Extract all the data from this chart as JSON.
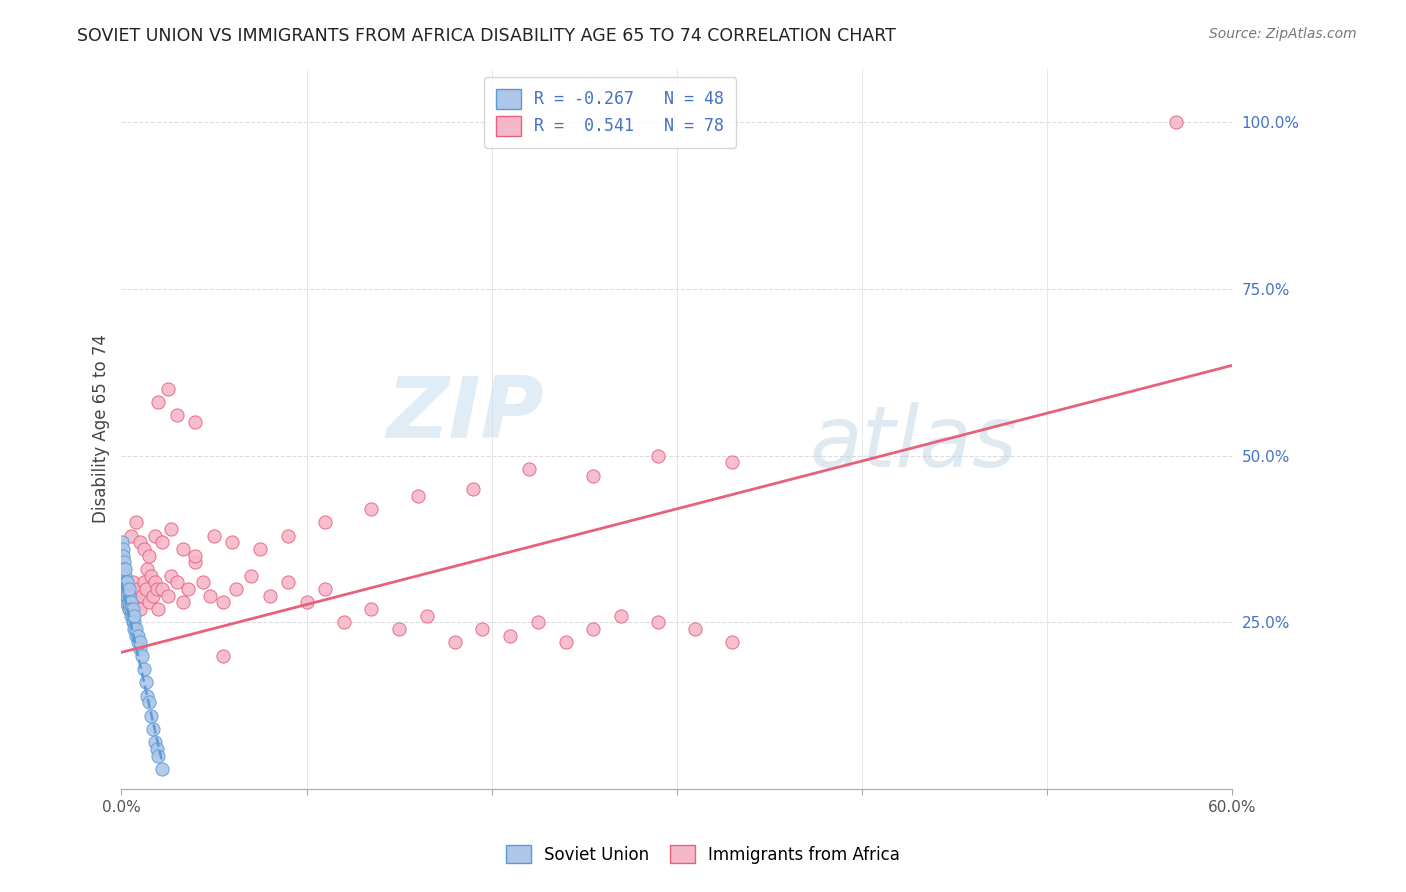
{
  "title": "SOVIET UNION VS IMMIGRANTS FROM AFRICA DISABILITY AGE 65 TO 74 CORRELATION CHART",
  "source": "Source: ZipAtlas.com",
  "ylabel": "Disability Age 65 to 74",
  "xlim": [
    0.0,
    0.6
  ],
  "ylim": [
    0.0,
    1.08
  ],
  "xticks": [
    0.0,
    0.1,
    0.2,
    0.3,
    0.4,
    0.5,
    0.6
  ],
  "ytick_right_vals": [
    0.25,
    0.5,
    0.75,
    1.0
  ],
  "ytick_right_labels": [
    "25.0%",
    "50.0%",
    "75.0%",
    "100.0%"
  ],
  "legend_r1": "R = -0.267   N = 48",
  "legend_r2": "R =  0.541   N = 78",
  "soviet_color": "#aec6e8",
  "africa_color": "#f5b8ca",
  "soviet_edge_color": "#5b9bd5",
  "africa_edge_color": "#e8607a",
  "soviet_line_color": "#5b9bd5",
  "africa_line_color": "#e8607a",
  "watermark_zip": "ZIP",
  "watermark_atlas": "atlas",
  "soviet_x": [
    0.0005,
    0.001,
    0.001,
    0.0015,
    0.0015,
    0.002,
    0.002,
    0.002,
    0.002,
    0.0025,
    0.0025,
    0.003,
    0.003,
    0.003,
    0.003,
    0.003,
    0.004,
    0.004,
    0.004,
    0.004,
    0.004,
    0.005,
    0.005,
    0.005,
    0.005,
    0.006,
    0.006,
    0.006,
    0.007,
    0.007,
    0.007,
    0.008,
    0.008,
    0.009,
    0.009,
    0.01,
    0.01,
    0.011,
    0.012,
    0.013,
    0.014,
    0.015,
    0.016,
    0.017,
    0.018,
    0.019,
    0.02,
    0.022
  ],
  "soviet_y": [
    0.37,
    0.36,
    0.35,
    0.34,
    0.33,
    0.32,
    0.33,
    0.31,
    0.3,
    0.31,
    0.3,
    0.29,
    0.3,
    0.31,
    0.28,
    0.29,
    0.28,
    0.29,
    0.3,
    0.27,
    0.28,
    0.27,
    0.28,
    0.26,
    0.27,
    0.26,
    0.27,
    0.25,
    0.25,
    0.26,
    0.24,
    0.23,
    0.24,
    0.22,
    0.23,
    0.21,
    0.22,
    0.2,
    0.18,
    0.16,
    0.14,
    0.13,
    0.11,
    0.09,
    0.07,
    0.06,
    0.05,
    0.03
  ],
  "africa_x": [
    0.001,
    0.002,
    0.003,
    0.004,
    0.005,
    0.006,
    0.007,
    0.008,
    0.009,
    0.01,
    0.011,
    0.012,
    0.013,
    0.014,
    0.015,
    0.016,
    0.017,
    0.018,
    0.019,
    0.02,
    0.022,
    0.025,
    0.027,
    0.03,
    0.033,
    0.036,
    0.04,
    0.044,
    0.048,
    0.055,
    0.062,
    0.07,
    0.08,
    0.09,
    0.1,
    0.11,
    0.12,
    0.135,
    0.15,
    0.165,
    0.18,
    0.195,
    0.21,
    0.225,
    0.24,
    0.255,
    0.27,
    0.29,
    0.31,
    0.33,
    0.005,
    0.008,
    0.01,
    0.012,
    0.015,
    0.018,
    0.022,
    0.027,
    0.033,
    0.04,
    0.05,
    0.06,
    0.075,
    0.09,
    0.11,
    0.135,
    0.16,
    0.19,
    0.22,
    0.255,
    0.29,
    0.33,
    0.02,
    0.025,
    0.03,
    0.04,
    0.055,
    0.57
  ],
  "africa_y": [
    0.3,
    0.28,
    0.29,
    0.27,
    0.3,
    0.31,
    0.29,
    0.28,
    0.3,
    0.27,
    0.29,
    0.31,
    0.3,
    0.33,
    0.28,
    0.32,
    0.29,
    0.31,
    0.3,
    0.27,
    0.3,
    0.29,
    0.32,
    0.31,
    0.28,
    0.3,
    0.34,
    0.31,
    0.29,
    0.28,
    0.3,
    0.32,
    0.29,
    0.31,
    0.28,
    0.3,
    0.25,
    0.27,
    0.24,
    0.26,
    0.22,
    0.24,
    0.23,
    0.25,
    0.22,
    0.24,
    0.26,
    0.25,
    0.24,
    0.22,
    0.38,
    0.4,
    0.37,
    0.36,
    0.35,
    0.38,
    0.37,
    0.39,
    0.36,
    0.35,
    0.38,
    0.37,
    0.36,
    0.38,
    0.4,
    0.42,
    0.44,
    0.45,
    0.48,
    0.47,
    0.5,
    0.49,
    0.58,
    0.6,
    0.56,
    0.55,
    0.2,
    1.0
  ],
  "soviet_trend": [
    0.0,
    0.022,
    0.31,
    0.04
  ],
  "africa_trend": [
    0.0,
    0.6,
    0.205,
    0.635
  ],
  "grid_color": "#dddddd",
  "spine_color": "#aaaaaa"
}
